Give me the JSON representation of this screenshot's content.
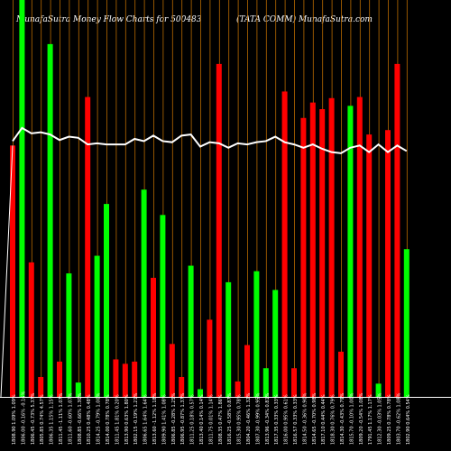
{
  "header": {
    "left_title": "MunafaSutra  Money Flow  Charts for 500483",
    "right_title": "(TATA COMM) MunafaSutra.com"
  },
  "chart_data": {
    "type": "bar",
    "title": "MunafaSutra  Money Flow  Charts for 500483",
    "subtitle": "(TATA COMM) MunafaSutra.com",
    "colors": {
      "up": "#00ff00",
      "down": "#ff0000",
      "grid": "#b86a00",
      "line": "#ffffff",
      "background": "#000000"
    },
    "ylim": [
      0,
      360
    ],
    "grid": "vertical",
    "categories": [
      "1808.90 1.09% 1.09%",
      "1806.00 -0.16% -0.16%",
      "1806.45 -0.73% 5.37%",
      "1805.85 0.74% 4.57%",
      "1806.35 1.15% 1.15%",
      "1811.45 -1.11% 1.07%",
      "1811.60 -0.60% 1.07%",
      "1808.85 -0.66% 1.30%",
      "1810.25 0.48% 0.48%",
      "1814.25 -0.79% 1.00%",
      "1814.00 0.78% 0.78%",
      "1811.45 1.81% 0.20%",
      "1813.90 0.63% 1.80%",
      "1802.15 -0.19% 1.21%",
      "1806.65 1.64% 1.64%",
      "1813.60 -1.12% 1.18%",
      "1809.90 1.41% 1.08%",
      "1806.85 -0.28% 1.25%",
      "1806.95 -0.87% 1.37%",
      "1811.25 0.18% 0.57%",
      "1813.40 0.14% 0.14%",
      "1811.75 0.01% 1.14%",
      "1808.35 0.47% 1.86%",
      "1816.25 -0.58% 0.87%",
      "1815.30 0.95% 0.78%",
      "1804.20 -0.46% 1.32%",
      "1807.30 -0.99% 0.95%",
      "1813.96 -0.34% 0.81%",
      "1817.35 0.33% 0.33%",
      "1816.00 0.95% 0.61%",
      "1816.57 0.33% 0.33%",
      "1814.50 -0.36% 0.90%",
      "1814.65 -0.70% 0.98%",
      "1817.10 0.44% 0.44%",
      "1818.30 0.76% 0.79%",
      "1814.30 -0.43% 0.79%",
      "1815.70 -0.10% 1.00%",
      "1809.20 -0.54% 1.08%",
      "1791.45 1.17% 1.17%",
      "1812.30 -0.03% 1.05%",
      "1809.25 0.78% 0.78%",
      "1803.70 -0.62% 1.08%",
      "1802.90 0.64% 0.54%"
    ],
    "values": [
      228,
      360,
      122,
      18,
      320,
      32,
      112,
      13,
      272,
      128,
      175,
      34,
      30,
      32,
      188,
      108,
      165,
      48,
      18,
      119,
      7,
      70,
      302,
      104,
      14,
      47,
      114,
      26,
      97,
      277,
      26,
      253,
      267,
      261,
      271,
      41,
      264,
      272,
      238,
      12,
      242,
      302,
      134
    ],
    "bar_colors": [
      "red",
      "green",
      "red",
      "red",
      "green",
      "red",
      "green",
      "green",
      "red",
      "green",
      "green",
      "red",
      "red",
      "red",
      "green",
      "red",
      "green",
      "red",
      "red",
      "green",
      "green",
      "red",
      "red",
      "green",
      "red",
      "red",
      "green",
      "green",
      "green",
      "red",
      "red",
      "red",
      "red",
      "red",
      "red",
      "red",
      "green",
      "red",
      "red",
      "green",
      "red",
      "red",
      "green"
    ],
    "series": [
      {
        "values": [
          232,
          244,
          239,
          240,
          238,
          233,
          236,
          235,
          229,
          230,
          229,
          229,
          229,
          234,
          232,
          237,
          232,
          231,
          237,
          238,
          227,
          231,
          230,
          226,
          230,
          229,
          231,
          232,
          236,
          231,
          229,
          226,
          229,
          225,
          222,
          221,
          226,
          228,
          222,
          229,
          222,
          228,
          223
        ]
      }
    ]
  }
}
